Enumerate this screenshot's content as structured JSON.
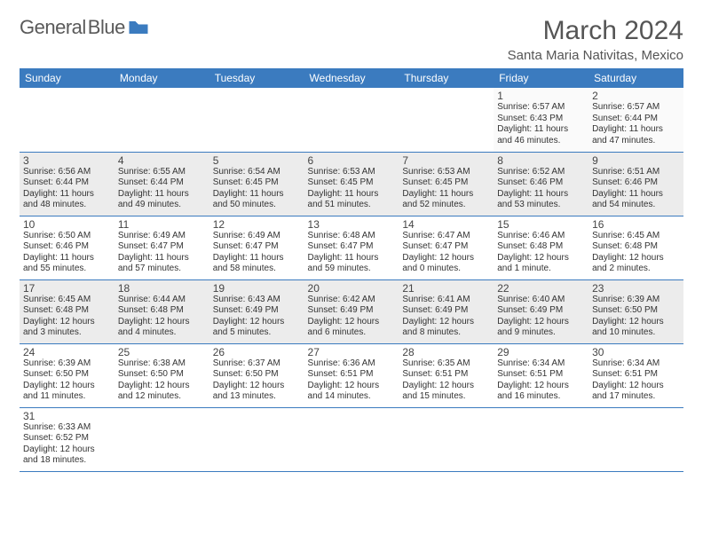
{
  "brand": {
    "name_a": "General",
    "name_b": "Blue"
  },
  "title": "March 2024",
  "location": "Santa Maria Nativitas, Mexico",
  "header_color": "#3b7bbf",
  "row_border_color": "#3b7bbf",
  "grey_row_bg": "#ececec",
  "days_header": [
    "Sunday",
    "Monday",
    "Tuesday",
    "Wednesday",
    "Thursday",
    "Friday",
    "Saturday"
  ],
  "weeks": [
    [
      null,
      null,
      null,
      null,
      null,
      {
        "n": "1",
        "sr": "Sunrise: 6:57 AM",
        "ss": "Sunset: 6:43 PM",
        "d1": "Daylight: 11 hours",
        "d2": "and 46 minutes."
      },
      {
        "n": "2",
        "sr": "Sunrise: 6:57 AM",
        "ss": "Sunset: 6:44 PM",
        "d1": "Daylight: 11 hours",
        "d2": "and 47 minutes."
      }
    ],
    [
      {
        "n": "3",
        "sr": "Sunrise: 6:56 AM",
        "ss": "Sunset: 6:44 PM",
        "d1": "Daylight: 11 hours",
        "d2": "and 48 minutes."
      },
      {
        "n": "4",
        "sr": "Sunrise: 6:55 AM",
        "ss": "Sunset: 6:44 PM",
        "d1": "Daylight: 11 hours",
        "d2": "and 49 minutes."
      },
      {
        "n": "5",
        "sr": "Sunrise: 6:54 AM",
        "ss": "Sunset: 6:45 PM",
        "d1": "Daylight: 11 hours",
        "d2": "and 50 minutes."
      },
      {
        "n": "6",
        "sr": "Sunrise: 6:53 AM",
        "ss": "Sunset: 6:45 PM",
        "d1": "Daylight: 11 hours",
        "d2": "and 51 minutes."
      },
      {
        "n": "7",
        "sr": "Sunrise: 6:53 AM",
        "ss": "Sunset: 6:45 PM",
        "d1": "Daylight: 11 hours",
        "d2": "and 52 minutes."
      },
      {
        "n": "8",
        "sr": "Sunrise: 6:52 AM",
        "ss": "Sunset: 6:46 PM",
        "d1": "Daylight: 11 hours",
        "d2": "and 53 minutes."
      },
      {
        "n": "9",
        "sr": "Sunrise: 6:51 AM",
        "ss": "Sunset: 6:46 PM",
        "d1": "Daylight: 11 hours",
        "d2": "and 54 minutes."
      }
    ],
    [
      {
        "n": "10",
        "sr": "Sunrise: 6:50 AM",
        "ss": "Sunset: 6:46 PM",
        "d1": "Daylight: 11 hours",
        "d2": "and 55 minutes."
      },
      {
        "n": "11",
        "sr": "Sunrise: 6:49 AM",
        "ss": "Sunset: 6:47 PM",
        "d1": "Daylight: 11 hours",
        "d2": "and 57 minutes."
      },
      {
        "n": "12",
        "sr": "Sunrise: 6:49 AM",
        "ss": "Sunset: 6:47 PM",
        "d1": "Daylight: 11 hours",
        "d2": "and 58 minutes."
      },
      {
        "n": "13",
        "sr": "Sunrise: 6:48 AM",
        "ss": "Sunset: 6:47 PM",
        "d1": "Daylight: 11 hours",
        "d2": "and 59 minutes."
      },
      {
        "n": "14",
        "sr": "Sunrise: 6:47 AM",
        "ss": "Sunset: 6:47 PM",
        "d1": "Daylight: 12 hours",
        "d2": "and 0 minutes."
      },
      {
        "n": "15",
        "sr": "Sunrise: 6:46 AM",
        "ss": "Sunset: 6:48 PM",
        "d1": "Daylight: 12 hours",
        "d2": "and 1 minute."
      },
      {
        "n": "16",
        "sr": "Sunrise: 6:45 AM",
        "ss": "Sunset: 6:48 PM",
        "d1": "Daylight: 12 hours",
        "d2": "and 2 minutes."
      }
    ],
    [
      {
        "n": "17",
        "sr": "Sunrise: 6:45 AM",
        "ss": "Sunset: 6:48 PM",
        "d1": "Daylight: 12 hours",
        "d2": "and 3 minutes."
      },
      {
        "n": "18",
        "sr": "Sunrise: 6:44 AM",
        "ss": "Sunset: 6:48 PM",
        "d1": "Daylight: 12 hours",
        "d2": "and 4 minutes."
      },
      {
        "n": "19",
        "sr": "Sunrise: 6:43 AM",
        "ss": "Sunset: 6:49 PM",
        "d1": "Daylight: 12 hours",
        "d2": "and 5 minutes."
      },
      {
        "n": "20",
        "sr": "Sunrise: 6:42 AM",
        "ss": "Sunset: 6:49 PM",
        "d1": "Daylight: 12 hours",
        "d2": "and 6 minutes."
      },
      {
        "n": "21",
        "sr": "Sunrise: 6:41 AM",
        "ss": "Sunset: 6:49 PM",
        "d1": "Daylight: 12 hours",
        "d2": "and 8 minutes."
      },
      {
        "n": "22",
        "sr": "Sunrise: 6:40 AM",
        "ss": "Sunset: 6:49 PM",
        "d1": "Daylight: 12 hours",
        "d2": "and 9 minutes."
      },
      {
        "n": "23",
        "sr": "Sunrise: 6:39 AM",
        "ss": "Sunset: 6:50 PM",
        "d1": "Daylight: 12 hours",
        "d2": "and 10 minutes."
      }
    ],
    [
      {
        "n": "24",
        "sr": "Sunrise: 6:39 AM",
        "ss": "Sunset: 6:50 PM",
        "d1": "Daylight: 12 hours",
        "d2": "and 11 minutes."
      },
      {
        "n": "25",
        "sr": "Sunrise: 6:38 AM",
        "ss": "Sunset: 6:50 PM",
        "d1": "Daylight: 12 hours",
        "d2": "and 12 minutes."
      },
      {
        "n": "26",
        "sr": "Sunrise: 6:37 AM",
        "ss": "Sunset: 6:50 PM",
        "d1": "Daylight: 12 hours",
        "d2": "and 13 minutes."
      },
      {
        "n": "27",
        "sr": "Sunrise: 6:36 AM",
        "ss": "Sunset: 6:51 PM",
        "d1": "Daylight: 12 hours",
        "d2": "and 14 minutes."
      },
      {
        "n": "28",
        "sr": "Sunrise: 6:35 AM",
        "ss": "Sunset: 6:51 PM",
        "d1": "Daylight: 12 hours",
        "d2": "and 15 minutes."
      },
      {
        "n": "29",
        "sr": "Sunrise: 6:34 AM",
        "ss": "Sunset: 6:51 PM",
        "d1": "Daylight: 12 hours",
        "d2": "and 16 minutes."
      },
      {
        "n": "30",
        "sr": "Sunrise: 6:34 AM",
        "ss": "Sunset: 6:51 PM",
        "d1": "Daylight: 12 hours",
        "d2": "and 17 minutes."
      }
    ],
    [
      {
        "n": "31",
        "sr": "Sunrise: 6:33 AM",
        "ss": "Sunset: 6:52 PM",
        "d1": "Daylight: 12 hours",
        "d2": "and 18 minutes."
      },
      null,
      null,
      null,
      null,
      null,
      null
    ]
  ],
  "grey_rows": [
    1,
    3
  ]
}
